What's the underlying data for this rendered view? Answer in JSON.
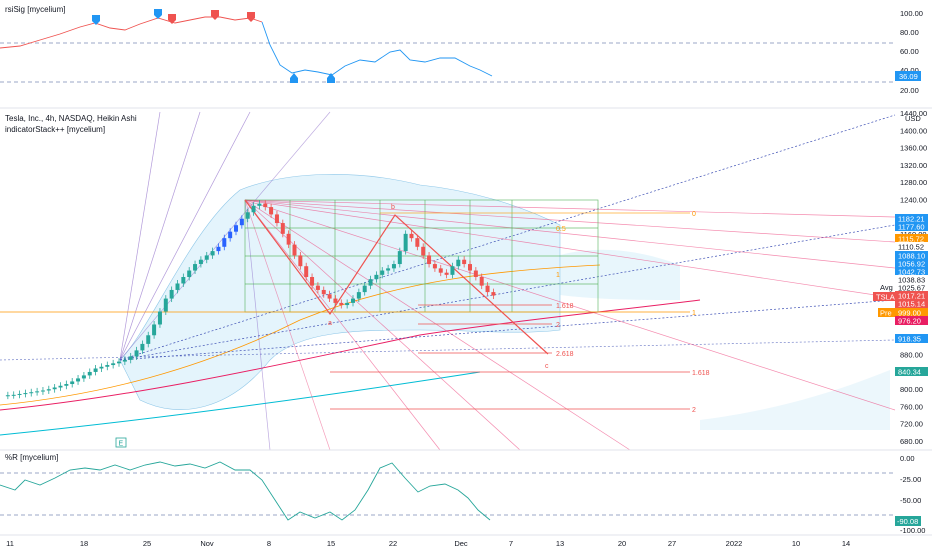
{
  "colors": {
    "up": "#26a69a",
    "down": "#ef5350",
    "blue": "#2962ff",
    "price_tag": "#ef5350",
    "orange": "#ff9800",
    "magenta": "#e91e63",
    "green_box": "#4caf50",
    "rsi_line_blue": "#2196f3"
  },
  "rsi_panel": {
    "title": "rsiSig [mycelium]",
    "ticks": [
      "100.00",
      "80.00",
      "60.00",
      "40.00",
      "20.00"
    ],
    "current": "36.09"
  },
  "main_panel": {
    "title": "Tesla, Inc., 4h, NASDAQ, Heikin Ashi",
    "indicator": "indicatorStack++ [mycelium]",
    "currency": "USD",
    "ticks": [
      "1440.00",
      "1400.00",
      "1360.00",
      "1320.00",
      "1280.00",
      "1240.00",
      "1200.00",
      "1160.00",
      "1120.00",
      "1080.00",
      "1040.00",
      "1000.00",
      "960.00",
      "920.00",
      "880.00",
      "840.00",
      "800.00",
      "760.00",
      "720.00",
      "680.00"
    ],
    "tags": [
      {
        "text": "1182.21",
        "color": "#2196f3"
      },
      {
        "text": "1177.60",
        "color": "#2196f3"
      },
      {
        "text": "1115.72",
        "color": "#ff9800"
      },
      {
        "text": "1110.52",
        "color": "#ffffff"
      },
      {
        "text": "1088.10",
        "color": "#2196f3"
      },
      {
        "text": "1056.92",
        "color": "#2196f3"
      },
      {
        "text": "1042.73",
        "color": "#2196f3"
      },
      {
        "text": "1038.83",
        "color": "#ffffff"
      },
      {
        "text": "1025.67",
        "color": "#ffffff"
      },
      {
        "text": "1017.21",
        "color": "#ef5350"
      },
      {
        "text": "1015.14",
        "color": "#ef5350"
      },
      {
        "text": "999.00",
        "color": "#ff9800"
      },
      {
        "text": "976.20",
        "color": "#e91e63"
      },
      {
        "text": "918.35",
        "color": "#2196f3"
      },
      {
        "text": "840.34",
        "color": "#26a69a"
      }
    ],
    "avg_label": "Avg",
    "ticker_label": "TSLA",
    "pre_label": "Pre",
    "wave_labels": [
      "a",
      "b",
      "c"
    ],
    "fib_labels": [
      "0",
      "0.5",
      "1",
      "1.618",
      "1",
      "2",
      "2.618",
      "1.618",
      "2"
    ],
    "earnings_marker": "E"
  },
  "wr_panel": {
    "title": "%R [mycelium]",
    "ticks": [
      "0.00",
      "-25.00",
      "-50.00",
      "-75.00",
      "-100.00"
    ],
    "current": "-90.08"
  },
  "x_axis": {
    "labels": [
      "11",
      "18",
      "25",
      "Nov",
      "8",
      "15",
      "22",
      "Dec",
      "7",
      "13",
      "20",
      "27",
      "2022",
      "10",
      "14"
    ]
  },
  "chart_data": {
    "type": "candlestick",
    "title": "Tesla, Inc., 4h, NASDAQ, Heikin Ashi",
    "ylim": [
      680,
      1440
    ],
    "heikin_ashi_close_approx": [
      785,
      786,
      787,
      789,
      791,
      793,
      795,
      797,
      800,
      804,
      808,
      812,
      818,
      825,
      832,
      840,
      848,
      852,
      856,
      860,
      864,
      868,
      876,
      890,
      905,
      925,
      950,
      980,
      1010,
      1030,
      1045,
      1060,
      1075,
      1090,
      1100,
      1110,
      1120,
      1130,
      1150,
      1165,
      1180,
      1195,
      1210,
      1225,
      1230,
      1222,
      1205,
      1185,
      1160,
      1135,
      1110,
      1085,
      1060,
      1040,
      1030,
      1020,
      1010,
      1000,
      995,
      1000,
      1010,
      1025,
      1040,
      1055,
      1065,
      1075,
      1080,
      1090,
      1120,
      1160,
      1150,
      1130,
      1110,
      1090,
      1080,
      1070,
      1065,
      1085,
      1100,
      1090,
      1075,
      1060,
      1040,
      1025,
      1017
    ]
  }
}
